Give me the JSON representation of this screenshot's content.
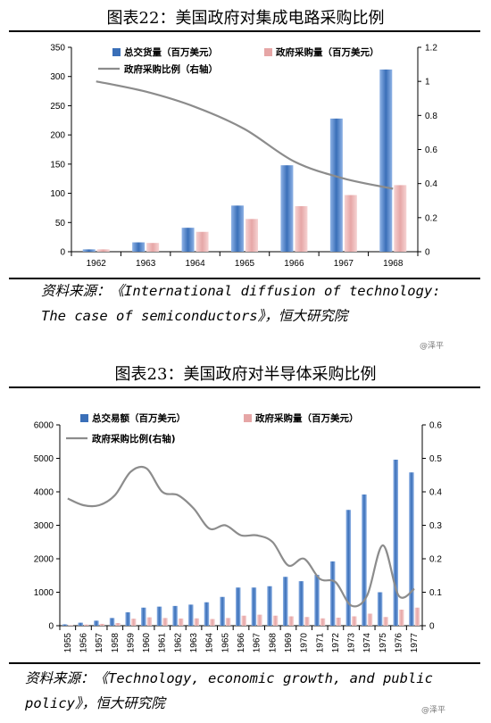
{
  "figures": [
    {
      "title": "图表22：美国政府对集成电路采购比例",
      "source": "资料来源：《International diffusion of technology: The case of semiconductors》，恒大研究院",
      "watermark": "@泽平"
    },
    {
      "title": "图表23：美国政府对半导体采购比例",
      "source": "资料来源：《Technology, economic growth, and public policy》，恒大研究院",
      "watermark": "@泽平"
    }
  ],
  "chart_data": [
    {
      "type": "bar",
      "categories": [
        "1962",
        "1963",
        "1964",
        "1965",
        "1966",
        "1967",
        "1968"
      ],
      "series": [
        {
          "name": "总交货量（百万美元）",
          "type": "bar",
          "axis": "left",
          "color": "#3a6fb8",
          "values": [
            4,
            16,
            41,
            79,
            148,
            228,
            312
          ]
        },
        {
          "name": "政府采购量（百万美元）",
          "type": "bar",
          "axis": "left",
          "color": "#e6a6a6",
          "values": [
            4,
            15,
            34,
            56,
            78,
            97,
            114
          ]
        },
        {
          "name": "政府采购比例（右轴）",
          "type": "line",
          "axis": "right",
          "color": "#8c8c8c",
          "values": [
            1.0,
            0.94,
            0.85,
            0.72,
            0.53,
            0.43,
            0.37
          ]
        }
      ],
      "ylim": [
        0,
        350
      ],
      "yticks": [
        "0",
        "50",
        "100",
        "150",
        "200",
        "250",
        "300",
        "350"
      ],
      "y2lim": [
        0,
        1.2
      ],
      "y2ticks": [
        "0",
        "0.2",
        "0.4",
        "0.6",
        "0.8",
        "1",
        "1.2"
      ],
      "legend": "top-left",
      "grid": false
    },
    {
      "type": "bar",
      "categories": [
        "1955",
        "1956",
        "1957",
        "1958",
        "1959",
        "1960",
        "1961",
        "1962",
        "1963",
        "1964",
        "1965",
        "1966",
        "1967",
        "1968",
        "1969",
        "1970",
        "1971",
        "1972",
        "1973",
        "1974",
        "1975",
        "1976",
        "1977"
      ],
      "series": [
        {
          "name": "总交易额（百万美元）",
          "type": "bar",
          "axis": "left",
          "color": "#3a6fb8",
          "values": [
            40,
            90,
            150,
            230,
            400,
            540,
            570,
            590,
            630,
            700,
            860,
            1140,
            1140,
            1180,
            1460,
            1330,
            1520,
            1920,
            3460,
            3920,
            1000,
            4960,
            4580
          ]
        },
        {
          "name": "政府采购量（百万美元）",
          "type": "bar",
          "axis": "left",
          "color": "#e6a6a6",
          "values": [
            15,
            35,
            55,
            80,
            210,
            250,
            230,
            215,
            220,
            200,
            230,
            300,
            330,
            300,
            280,
            260,
            220,
            240,
            280,
            360,
            260,
            480,
            540
          ]
        },
        {
          "name": "政府采购比例(右轴)",
          "type": "line",
          "axis": "right",
          "color": "#8c8c8c",
          "values": [
            0.38,
            0.36,
            0.36,
            0.39,
            0.46,
            0.47,
            0.4,
            0.39,
            0.35,
            0.29,
            0.3,
            0.27,
            0.27,
            0.25,
            0.18,
            0.2,
            0.14,
            0.13,
            0.06,
            0.09,
            0.24,
            0.09,
            0.11
          ]
        }
      ],
      "ylim": [
        0,
        6000
      ],
      "yticks": [
        "0",
        "1000",
        "2000",
        "3000",
        "4000",
        "5000",
        "6000"
      ],
      "y2lim": [
        0,
        0.6
      ],
      "y2ticks": [
        "0",
        "0.1",
        "0.2",
        "0.3",
        "0.4",
        "0.5",
        "0.6"
      ],
      "legend": "top-left",
      "grid": false
    }
  ]
}
